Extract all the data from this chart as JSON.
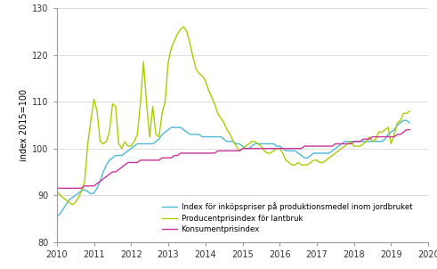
{
  "title": "",
  "ylabel": "index 2015=100",
  "ylim": [
    80,
    130
  ],
  "xlim": [
    2010.0,
    2020.0
  ],
  "yticks": [
    80,
    90,
    100,
    110,
    120,
    130
  ],
  "xticks": [
    2010,
    2011,
    2012,
    2013,
    2014,
    2015,
    2016,
    2017,
    2018,
    2019,
    2020
  ],
  "legend": [
    "Index för inköpspriser på produktionsmedel inom jordbruket",
    "Producentprisindex för lantbruk",
    "Konsumentprisindex"
  ],
  "colors": [
    "#4db8d4",
    "#aacc00",
    "#cc3399"
  ],
  "line_width": 1.0,
  "background": "#ffffff",
  "grid_color": "#d0d0d0",
  "blue_y": [
    85.5,
    86.0,
    87.0,
    88.0,
    89.0,
    89.5,
    90.0,
    90.5,
    91.0,
    91.2,
    90.8,
    90.3,
    90.5,
    91.5,
    93.0,
    95.0,
    96.5,
    97.5,
    98.0,
    98.5,
    98.5,
    98.5,
    99.0,
    99.5,
    100.0,
    100.5,
    101.0,
    101.0,
    101.0,
    101.0,
    101.0,
    101.0,
    101.5,
    102.0,
    103.0,
    103.5,
    104.0,
    104.5,
    104.5,
    104.5,
    104.5,
    104.0,
    103.5,
    103.0,
    103.0,
    103.0,
    103.0,
    102.5,
    102.5,
    102.5,
    102.5,
    102.5,
    102.5,
    102.5,
    102.0,
    101.5,
    101.5,
    101.5,
    101.0,
    101.0,
    100.5,
    100.0,
    100.0,
    100.5,
    101.0,
    101.0,
    101.0,
    101.0,
    101.0,
    101.0,
    101.0,
    100.5,
    100.5,
    100.0,
    99.5,
    99.5,
    99.5,
    99.5,
    99.0,
    98.5,
    98.0,
    98.0,
    98.5,
    99.0,
    99.0,
    99.0,
    99.0,
    99.0,
    99.0,
    99.5,
    100.0,
    100.5,
    101.0,
    101.5,
    101.5,
    101.5,
    101.5,
    101.5,
    101.5,
    101.5,
    101.5,
    101.5,
    101.5,
    101.5,
    101.5,
    101.5,
    102.0,
    103.0,
    103.5,
    104.0,
    105.0,
    105.5,
    106.0,
    106.0,
    105.5
  ],
  "green_y": [
    91.0,
    90.0,
    89.5,
    89.0,
    88.5,
    88.0,
    88.5,
    89.5,
    91.0,
    93.0,
    101.0,
    106.0,
    110.5,
    108.0,
    101.5,
    101.0,
    101.5,
    103.5,
    109.5,
    109.0,
    101.0,
    100.0,
    101.5,
    100.5,
    100.5,
    101.5,
    103.0,
    109.5,
    118.5,
    109.5,
    102.5,
    109.0,
    103.0,
    102.5,
    107.5,
    110.0,
    118.5,
    121.5,
    123.0,
    124.5,
    125.5,
    126.0,
    125.0,
    122.5,
    119.5,
    117.0,
    116.0,
    115.5,
    114.5,
    112.5,
    111.0,
    109.5,
    107.5,
    106.5,
    105.5,
    104.0,
    103.0,
    101.5,
    100.5,
    99.5,
    100.0,
    100.5,
    101.0,
    101.5,
    101.5,
    101.0,
    100.5,
    99.5,
    99.0,
    99.0,
    99.5,
    100.0,
    100.0,
    99.0,
    97.5,
    97.0,
    96.5,
    96.5,
    97.0,
    96.5,
    96.5,
    96.5,
    97.0,
    97.5,
    97.5,
    97.0,
    97.0,
    97.5,
    98.0,
    98.5,
    99.0,
    99.5,
    100.0,
    100.5,
    101.0,
    101.5,
    100.5,
    100.5,
    100.5,
    101.0,
    101.5,
    102.5,
    101.5,
    102.0,
    103.5,
    103.5,
    104.0,
    104.5,
    101.0,
    103.0,
    105.5,
    106.0,
    107.5,
    107.5,
    108.0
  ],
  "pink_y": [
    91.5,
    91.5,
    91.5,
    91.5,
    91.5,
    91.5,
    91.5,
    91.5,
    91.5,
    92.0,
    92.0,
    92.0,
    92.0,
    92.5,
    93.0,
    93.5,
    94.0,
    94.5,
    95.0,
    95.0,
    95.5,
    96.0,
    96.5,
    97.0,
    97.0,
    97.0,
    97.0,
    97.5,
    97.5,
    97.5,
    97.5,
    97.5,
    97.5,
    97.5,
    98.0,
    98.0,
    98.0,
    98.0,
    98.5,
    98.5,
    99.0,
    99.0,
    99.0,
    99.0,
    99.0,
    99.0,
    99.0,
    99.0,
    99.0,
    99.0,
    99.0,
    99.0,
    99.5,
    99.5,
    99.5,
    99.5,
    99.5,
    99.5,
    99.5,
    99.5,
    100.0,
    100.0,
    100.0,
    100.0,
    100.0,
    100.0,
    100.0,
    100.0,
    100.0,
    100.0,
    100.0,
    100.0,
    100.0,
    100.0,
    100.0,
    100.0,
    100.0,
    100.0,
    100.0,
    100.0,
    100.5,
    100.5,
    100.5,
    100.5,
    100.5,
    100.5,
    100.5,
    100.5,
    100.5,
    100.5,
    101.0,
    101.0,
    101.0,
    101.0,
    101.0,
    101.0,
    101.5,
    101.5,
    101.5,
    102.0,
    102.0,
    102.0,
    102.5,
    102.5,
    102.5,
    102.5,
    102.5,
    102.5,
    102.5,
    102.5,
    103.0,
    103.0,
    103.5,
    104.0,
    104.0
  ]
}
